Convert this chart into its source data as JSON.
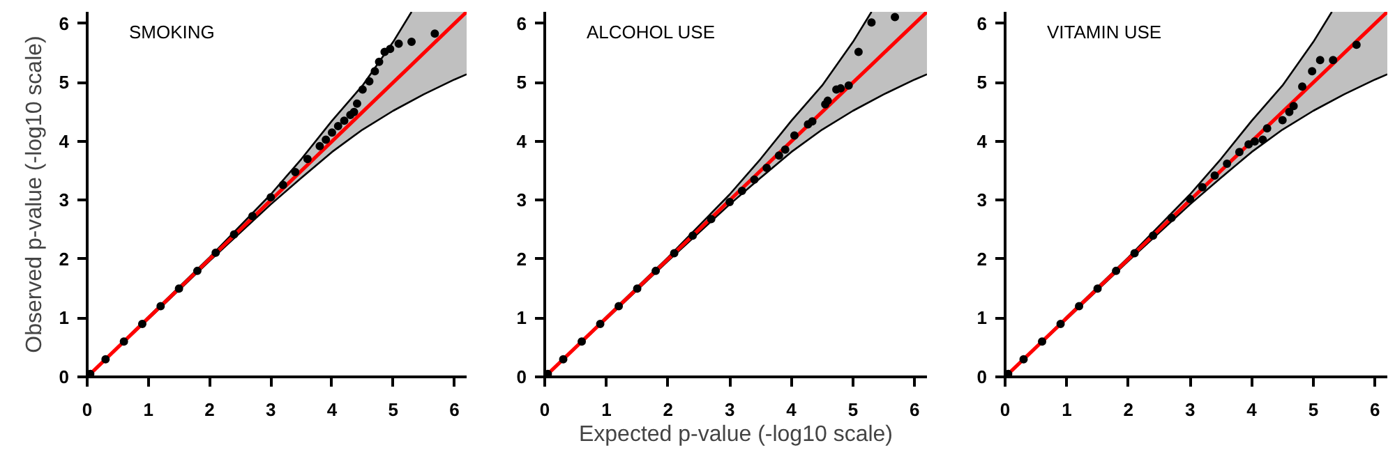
{
  "chart_data": [
    {
      "type": "scatter",
      "title": "SMOKING",
      "ylabel": "Observed p-value (-log10 scale)",
      "xlim": [
        0,
        6.2
      ],
      "ylim": [
        0,
        6.2
      ],
      "xticks": [
        0,
        1,
        2,
        3,
        4,
        5,
        6
      ],
      "yticks": [
        0,
        1,
        2,
        3,
        4,
        5,
        6
      ],
      "marker": "circle",
      "grid": false,
      "series": [
        {
          "type": "line",
          "marker": "none",
          "color": "#000000",
          "x": [
            0,
            1,
            2,
            3,
            3.5,
            4,
            4.5,
            5,
            5.5,
            6,
            6.2
          ],
          "values": [
            0,
            0.98,
            1.97,
            2.93,
            3.38,
            3.82,
            4.2,
            4.52,
            4.8,
            5.05,
            5.14
          ]
        },
        {
          "type": "line",
          "marker": "none",
          "color": "#000000",
          "x": [
            0,
            1,
            2,
            3,
            3.5,
            4,
            4.5,
            5,
            5.3
          ],
          "values": [
            0,
            1.02,
            2.03,
            3.1,
            3.7,
            4.35,
            4.95,
            5.69,
            6.2
          ]
        },
        {
          "type": "line",
          "marker": "none",
          "color": "#ff0000",
          "x": [
            0,
            1,
            2,
            3,
            3.5,
            4,
            4.5,
            5,
            5.3,
            5.5,
            6,
            6.2
          ],
          "values": [
            0,
            1,
            2,
            3,
            3.5,
            4,
            4.5,
            5,
            5.3,
            5.5,
            6,
            6.2
          ],
          "lower": [
            0,
            0.98,
            1.97,
            2.93,
            3.38,
            3.82,
            4.2,
            4.52,
            4.68,
            4.8,
            5.05,
            5.14
          ],
          "upper": [
            0,
            1.02,
            2.03,
            3.1,
            3.7,
            4.35,
            4.95,
            5.69,
            6.2,
            6.2,
            6.2,
            6.2
          ]
        },
        {
          "color": "#000000",
          "x": [
            0.05,
            0.3,
            0.6,
            0.9,
            1.2,
            1.5,
            1.8,
            2.1,
            2.4,
            2.7,
            3.0,
            3.2,
            3.4,
            3.6,
            3.8,
            3.9,
            4.0,
            4.1,
            4.2,
            4.3,
            4.36,
            4.41,
            4.5,
            4.61,
            4.7,
            4.77,
            4.86,
            4.95,
            5.09,
            5.3,
            5.68
          ],
          "values": [
            0.05,
            0.3,
            0.6,
            0.9,
            1.2,
            1.5,
            1.8,
            2.11,
            2.42,
            2.73,
            3.05,
            3.26,
            3.48,
            3.7,
            3.92,
            4.03,
            4.15,
            4.26,
            4.35,
            4.45,
            4.5,
            4.64,
            4.88,
            5.02,
            5.19,
            5.35,
            5.52,
            5.57,
            5.66,
            5.69,
            5.83
          ]
        }
      ]
    },
    {
      "type": "scatter",
      "title": "ALCOHOL USE",
      "xlabel": "Expected p-value (-log10 scale)",
      "xlim": [
        0,
        6.2
      ],
      "ylim": [
        0,
        6.2
      ],
      "xticks": [
        0,
        1,
        2,
        3,
        4,
        5,
        6
      ],
      "yticks": [
        0,
        1,
        2,
        3,
        4,
        5,
        6
      ],
      "marker": "circle",
      "grid": false,
      "series": [
        {
          "type": "line",
          "marker": "none",
          "color": "#000000",
          "x": [
            0,
            1,
            2,
            3,
            3.5,
            4,
            4.5,
            5,
            5.5,
            6,
            6.2
          ],
          "values": [
            0,
            0.98,
            1.97,
            2.93,
            3.38,
            3.82,
            4.2,
            4.52,
            4.8,
            5.05,
            5.14
          ]
        },
        {
          "type": "line",
          "marker": "none",
          "color": "#000000",
          "x": [
            0,
            1,
            2,
            3,
            3.5,
            4,
            4.5,
            5,
            5.3
          ],
          "values": [
            0,
            1.02,
            2.03,
            3.1,
            3.7,
            4.35,
            4.95,
            5.69,
            6.2
          ]
        },
        {
          "type": "line",
          "marker": "none",
          "color": "#ff0000",
          "x": [
            0,
            1,
            2,
            3,
            3.5,
            4,
            4.5,
            5,
            5.3,
            5.5,
            6,
            6.2
          ],
          "values": [
            0,
            1,
            2,
            3,
            3.5,
            4,
            4.5,
            5,
            5.3,
            5.5,
            6,
            6.2
          ],
          "lower": [
            0,
            0.98,
            1.97,
            2.93,
            3.38,
            3.82,
            4.2,
            4.52,
            4.68,
            4.8,
            5.05,
            5.14
          ],
          "upper": [
            0,
            1.02,
            2.03,
            3.1,
            3.7,
            4.35,
            4.95,
            5.69,
            6.2,
            6.2,
            6.2,
            6.2
          ]
        },
        {
          "color": "#000000",
          "x": [
            0.05,
            0.3,
            0.6,
            0.9,
            1.2,
            1.5,
            1.8,
            2.1,
            2.4,
            2.7,
            3.0,
            3.2,
            3.4,
            3.6,
            3.8,
            3.9,
            4.05,
            4.27,
            4.34,
            4.55,
            4.59,
            4.73,
            4.8,
            4.93,
            5.09,
            5.3,
            5.68
          ],
          "values": [
            0.05,
            0.3,
            0.6,
            0.9,
            1.2,
            1.5,
            1.8,
            2.1,
            2.4,
            2.68,
            2.97,
            3.16,
            3.35,
            3.55,
            3.76,
            3.86,
            4.1,
            4.29,
            4.34,
            4.63,
            4.69,
            4.88,
            4.9,
            4.95,
            5.52,
            6.02,
            6.11
          ]
        }
      ]
    },
    {
      "type": "scatter",
      "title": "VITAMIN USE",
      "xlim": [
        0,
        6.2
      ],
      "ylim": [
        0,
        6.2
      ],
      "xticks": [
        0,
        1,
        2,
        3,
        4,
        5,
        6
      ],
      "yticks": [
        0,
        1,
        2,
        3,
        4,
        5,
        6
      ],
      "marker": "circle",
      "grid": false,
      "series": [
        {
          "type": "line",
          "marker": "none",
          "color": "#000000",
          "x": [
            0,
            1,
            2,
            3,
            3.5,
            4,
            4.5,
            5,
            5.5,
            6,
            6.2
          ],
          "values": [
            0,
            0.98,
            1.97,
            2.93,
            3.38,
            3.82,
            4.2,
            4.52,
            4.8,
            5.05,
            5.14
          ]
        },
        {
          "type": "line",
          "marker": "none",
          "color": "#000000",
          "x": [
            0,
            1,
            2,
            3,
            3.5,
            4,
            4.5,
            5,
            5.3
          ],
          "values": [
            0,
            1.02,
            2.03,
            3.1,
            3.7,
            4.35,
            4.95,
            5.69,
            6.2
          ]
        },
        {
          "type": "line",
          "marker": "none",
          "color": "#ff0000",
          "x": [
            0,
            1,
            2,
            3,
            3.5,
            4,
            4.5,
            5,
            5.3,
            5.5,
            6,
            6.2
          ],
          "values": [
            0,
            1,
            2,
            3,
            3.5,
            4,
            4.5,
            5,
            5.3,
            5.5,
            6,
            6.2
          ],
          "lower": [
            0,
            0.98,
            1.97,
            2.93,
            3.38,
            3.82,
            4.2,
            4.52,
            4.68,
            4.8,
            5.05,
            5.14
          ],
          "upper": [
            0,
            1.02,
            2.03,
            3.1,
            3.7,
            4.35,
            4.95,
            5.69,
            6.2,
            6.2,
            6.2,
            6.2
          ]
        },
        {
          "color": "#000000",
          "x": [
            0.05,
            0.3,
            0.6,
            0.9,
            1.2,
            1.5,
            1.8,
            2.1,
            2.4,
            2.7,
            3.0,
            3.2,
            3.4,
            3.6,
            3.8,
            3.95,
            4.05,
            4.18,
            4.25,
            4.5,
            4.61,
            4.68,
            4.78,
            4.82,
            4.98,
            5.11,
            5.32,
            5.7
          ],
          "values": [
            0.05,
            0.3,
            0.6,
            0.9,
            1.2,
            1.5,
            1.8,
            2.1,
            2.4,
            2.7,
            3.02,
            3.22,
            3.42,
            3.62,
            3.82,
            3.95,
            4.0,
            4.03,
            4.22,
            4.36,
            4.5,
            4.6,
            null,
            4.93,
            5.19,
            5.38,
            5.38,
            5.64
          ]
        }
      ]
    }
  ]
}
